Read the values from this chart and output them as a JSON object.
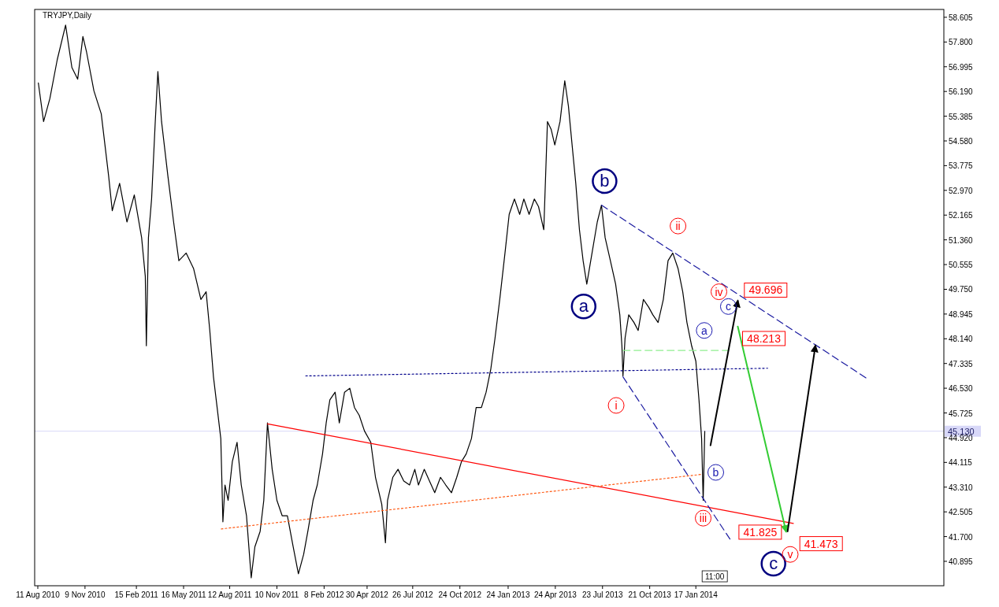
{
  "chart_data": {
    "type": "line",
    "title": "TRYJPY,Daily",
    "xlim": [
      "2010-08-05",
      "2015-05-05"
    ],
    "ylim": [
      40.1,
      58.86
    ],
    "xticks": [
      {
        "value": "2010-08-11",
        "label": "11 Aug 2010"
      },
      {
        "value": "2010-11-09",
        "label": "9 Nov 2010"
      },
      {
        "value": "2011-02-15",
        "label": "15 Feb 2011"
      },
      {
        "value": "2011-05-16",
        "label": "16 May 2011"
      },
      {
        "value": "2011-08-12",
        "label": "12 Aug 2011"
      },
      {
        "value": "2011-11-10",
        "label": "10 Nov 2011"
      },
      {
        "value": "2012-02-08",
        "label": "8 Feb 2012"
      },
      {
        "value": "2012-04-30",
        "label": "30 Apr 2012"
      },
      {
        "value": "2012-07-26",
        "label": "26 Jul 2012"
      },
      {
        "value": "2012-10-24",
        "label": "24 Oct 2012"
      },
      {
        "value": "2013-01-24",
        "label": "24 Jan 2013"
      },
      {
        "value": "2013-04-24",
        "label": "24 Apr 2013"
      },
      {
        "value": "2013-07-23",
        "label": "23 Jul 2013"
      },
      {
        "value": "2013-10-21",
        "label": "21 Oct 2013"
      },
      {
        "value": "2014-01-17",
        "label": "17 Jan 2014"
      }
    ],
    "yticks": [
      {
        "value": 40.895,
        "label": "40.895"
      },
      {
        "value": 41.7,
        "label": "41.700"
      },
      {
        "value": 42.505,
        "label": "42.505"
      },
      {
        "value": 43.31,
        "label": "43.310"
      },
      {
        "value": 44.115,
        "label": "44.115"
      },
      {
        "value": 44.92,
        "label": "44.920"
      },
      {
        "value": 45.725,
        "label": "45.725"
      },
      {
        "value": 46.53,
        "label": "46.530"
      },
      {
        "value": 47.335,
        "label": "47.335"
      },
      {
        "value": 48.14,
        "label": "48.140"
      },
      {
        "value": 48.945,
        "label": "48.945"
      },
      {
        "value": 49.75,
        "label": "49.750"
      },
      {
        "value": 50.555,
        "label": "50.555"
      },
      {
        "value": 51.36,
        "label": "51.360"
      },
      {
        "value": 52.165,
        "label": "52.165"
      },
      {
        "value": 52.97,
        "label": "52.970"
      },
      {
        "value": 53.775,
        "label": "53.775"
      },
      {
        "value": 54.58,
        "label": "54.580"
      },
      {
        "value": 55.385,
        "label": "55.385"
      },
      {
        "value": 56.19,
        "label": "56.190"
      },
      {
        "value": 56.995,
        "label": "56.995"
      },
      {
        "value": 57.8,
        "label": "57.800"
      },
      {
        "value": 58.605,
        "label": "58.605"
      }
    ],
    "series": [
      {
        "color": "#000000",
        "line_style": "solid",
        "x": [
          "2010-08-12",
          "2010-08-22",
          "2010-09-03",
          "2010-09-17",
          "2010-10-03",
          "2010-10-15",
          "2010-10-26",
          "2010-11-05",
          "2010-11-12",
          "2010-11-26",
          "2010-12-10",
          "2010-12-24",
          "2010-12-31",
          "2011-01-14",
          "2011-01-28",
          "2011-02-11",
          "2011-02-25",
          "2011-03-04",
          "2011-03-06",
          "2011-03-10",
          "2011-03-16",
          "2011-03-23",
          "2011-03-28",
          "2011-04-04",
          "2011-04-16",
          "2011-04-27",
          "2011-05-07",
          "2011-05-21",
          "2011-06-04",
          "2011-06-18",
          "2011-06-28",
          "2011-07-05",
          "2011-07-12",
          "2011-07-19",
          "2011-07-26",
          "2011-07-30",
          "2011-08-03",
          "2011-08-09",
          "2011-08-17",
          "2011-08-26",
          "2011-09-03",
          "2011-09-13",
          "2011-09-22",
          "2011-09-29",
          "2011-10-09",
          "2011-10-16",
          "2011-10-23",
          "2011-11-01",
          "2011-11-10",
          "2011-11-20",
          "2011-11-30",
          "2011-12-11",
          "2011-12-21",
          "2011-12-31",
          "2012-01-08",
          "2012-01-18",
          "2012-01-26",
          "2012-02-05",
          "2012-02-12",
          "2012-02-19",
          "2012-02-29",
          "2012-03-08",
          "2012-03-18",
          "2012-03-28",
          "2012-04-06",
          "2012-04-15",
          "2012-04-25",
          "2012-05-07",
          "2012-05-16",
          "2012-05-28",
          "2012-06-04",
          "2012-06-08",
          "2012-06-18",
          "2012-06-28",
          "2012-07-09",
          "2012-07-20",
          "2012-07-30",
          "2012-08-06",
          "2012-08-17",
          "2012-08-27",
          "2012-09-06",
          "2012-09-17",
          "2012-09-27",
          "2012-10-08",
          "2012-10-18",
          "2012-10-27",
          "2012-11-05",
          "2012-11-15",
          "2012-11-24",
          "2012-12-04",
          "2012-12-13",
          "2012-12-22",
          "2012-12-30",
          "2013-01-08",
          "2013-01-18",
          "2013-01-26",
          "2013-02-05",
          "2013-02-15",
          "2013-02-23",
          "2013-03-05",
          "2013-03-15",
          "2013-03-23",
          "2013-04-02",
          "2013-04-09",
          "2013-04-16",
          "2013-04-23",
          "2013-05-03",
          "2013-05-12",
          "2013-05-19",
          "2013-05-26",
          "2013-06-02",
          "2013-06-09",
          "2013-06-16",
          "2013-06-23",
          "2013-07-03",
          "2013-07-13",
          "2013-07-21",
          "2013-07-28",
          "2013-08-07",
          "2013-08-17",
          "2013-08-25",
          "2013-08-29",
          "2013-08-31",
          "2013-09-04",
          "2013-09-11",
          "2013-09-21",
          "2013-09-29",
          "2013-10-09",
          "2013-10-19",
          "2013-10-27",
          "2013-11-06",
          "2013-11-16",
          "2013-11-25",
          "2013-12-04",
          "2013-12-14",
          "2013-12-23",
          "2013-12-31",
          "2014-01-09",
          "2014-01-17",
          "2014-01-23",
          "2014-01-28",
          "2014-01-31",
          "2014-02-03"
        ],
        "values": [
          56.47,
          55.21,
          55.96,
          57.22,
          58.35,
          56.97,
          56.59,
          57.98,
          57.47,
          56.21,
          55.46,
          53.45,
          52.31,
          53.2,
          51.94,
          52.82,
          51.43,
          50.17,
          47.91,
          51.43,
          52.69,
          55.21,
          56.84,
          55.21,
          53.45,
          51.94,
          50.68,
          50.93,
          50.43,
          49.42,
          49.67,
          48.41,
          46.9,
          45.9,
          44.89,
          42.18,
          43.38,
          42.88,
          44.14,
          44.77,
          43.38,
          42.38,
          40.36,
          41.37,
          41.87,
          42.88,
          45.4,
          43.89,
          42.88,
          42.38,
          42.38,
          41.37,
          40.49,
          41.12,
          41.87,
          42.88,
          43.38,
          44.39,
          45.4,
          46.15,
          46.4,
          45.4,
          46.4,
          46.53,
          45.9,
          45.65,
          45.14,
          44.77,
          43.63,
          42.75,
          41.5,
          42.88,
          43.63,
          43.89,
          43.51,
          43.38,
          43.89,
          43.38,
          43.89,
          43.51,
          43.13,
          43.63,
          43.38,
          43.13,
          43.63,
          44.14,
          44.39,
          44.89,
          45.9,
          45.9,
          46.4,
          47.16,
          48.16,
          49.42,
          50.93,
          52.19,
          52.69,
          52.19,
          52.69,
          52.19,
          52.69,
          52.44,
          51.69,
          55.21,
          54.96,
          54.45,
          55.21,
          56.54,
          55.71,
          54.45,
          53.2,
          51.69,
          50.68,
          49.92,
          50.93,
          51.94,
          52.49,
          51.43,
          50.68,
          49.92,
          48.92,
          47.91,
          46.93,
          48.16,
          48.92,
          48.67,
          48.41,
          49.42,
          49.17,
          48.92,
          48.67,
          49.42,
          50.68,
          50.93,
          50.43,
          49.67,
          48.67,
          47.91,
          47.41,
          46.15,
          44.89,
          42.88,
          45.13
        ]
      },
      {
        "color": "#ff0000",
        "line_style": "solid",
        "x": [
          "2011-10-23",
          "2014-07-22"
        ],
        "values": [
          45.37,
          42.13
        ]
      },
      {
        "color": "#ff5a14",
        "line_style": "dotted",
        "x": [
          "2011-07-27",
          "2014-01-30"
        ],
        "values": [
          41.95,
          43.73
        ]
      },
      {
        "color": "#1a1aa0",
        "line_style": "dashed",
        "x": [
          "2013-07-21",
          "2014-12-09"
        ],
        "values": [
          52.49,
          46.85
        ]
      },
      {
        "color": "#1a1aa0",
        "line_style": "dashed",
        "x": [
          "2013-08-31",
          "2014-03-23"
        ],
        "values": [
          46.9,
          41.62
        ]
      },
      {
        "color": "#00008b",
        "line_style": "dotted",
        "x": [
          "2012-01-04",
          "2014-06-03"
        ],
        "values": [
          46.93,
          47.18
        ]
      },
      {
        "color": "#90ee90",
        "line_style": "dashed",
        "x": [
          "2013-08-31",
          "2014-03-20"
        ],
        "values": [
          47.76,
          47.76
        ]
      },
      {
        "color": "#000000",
        "line_style": "solid",
        "x": [
          "2014-02-14",
          "2014-04-07"
        ],
        "values": [
          44.67,
          49.37
        ]
      },
      {
        "color": "#33cc33",
        "line_style": "solid",
        "x": [
          "2014-04-07",
          "2014-07-08"
        ],
        "values": [
          48.54,
          41.87
        ]
      },
      {
        "color": "#000000",
        "line_style": "solid",
        "x": [
          "2014-07-11",
          "2014-09-02"
        ],
        "values": [
          41.87,
          47.91
        ]
      }
    ],
    "ref_lines": [
      {
        "axis": "y",
        "value": 45.13,
        "label": "45.130",
        "color": "#d8d8f8"
      }
    ],
    "annotations": [
      {
        "text": "b",
        "x": "2013-07-27",
        "y": 53.27
      },
      {
        "text": "a",
        "x": "2013-06-17",
        "y": 49.19
      },
      {
        "text": "c",
        "x": "2014-06-14",
        "y": 40.82
      },
      {
        "text": "i",
        "x": "2013-08-18",
        "y": 45.97
      },
      {
        "text": "ii",
        "x": "2013-12-14",
        "y": 51.81
      },
      {
        "text": "iii",
        "x": "2014-01-31",
        "y": 42.3
      },
      {
        "text": "iv",
        "x": "2014-03-02",
        "y": 49.67
      },
      {
        "text": "v",
        "x": "2014-07-16",
        "y": 41.12
      },
      {
        "text": "a",
        "x": "2014-02-02",
        "y": 48.41
      },
      {
        "text": "b",
        "x": "2014-02-24",
        "y": 43.79
      },
      {
        "text": "c",
        "x": "2014-03-20",
        "y": 49.19
      },
      "49.696",
      "48.213",
      "41.825",
      "41.473",
      "11:00"
    ]
  }
}
